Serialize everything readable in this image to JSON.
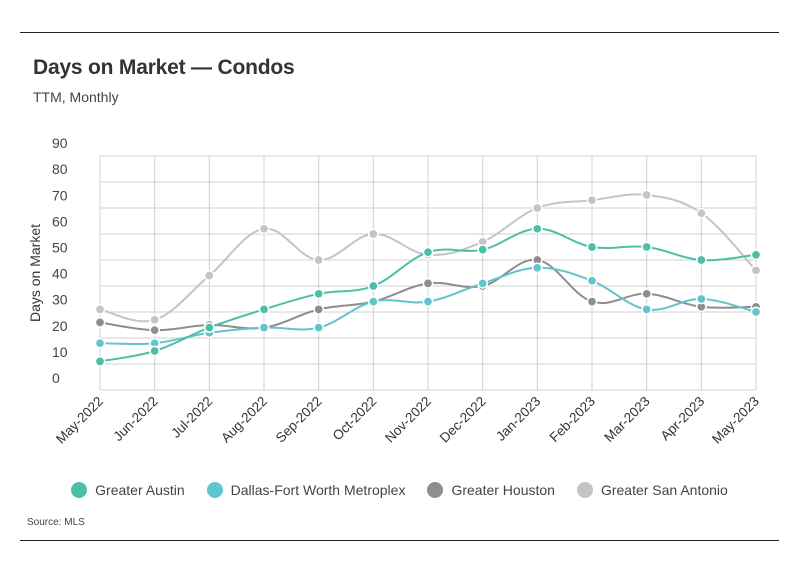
{
  "header": {
    "title": "Days on Market — Condos",
    "subtitle": "TTM, Monthly"
  },
  "footer": {
    "source": "Source:  MLS"
  },
  "chart_data": {
    "type": "line",
    "ylabel": "Days on Market",
    "xlabel": "",
    "ylim": [
      0,
      90
    ],
    "yticks": [
      0,
      10,
      20,
      30,
      40,
      50,
      60,
      70,
      80,
      90
    ],
    "grid": true,
    "legend": "bottom",
    "categories": [
      "May-2022",
      "Jun-2022",
      "Jul-2022",
      "Aug-2022",
      "Sep-2022",
      "Oct-2022",
      "Nov-2022",
      "Dec-2022",
      "Jan-2023",
      "Feb-2023",
      "Mar-2023",
      "Apr-2023",
      "May-2023"
    ],
    "series": [
      {
        "name": "Greater Austin",
        "color": "#4dbfa8",
        "values": [
          11,
          15,
          24,
          31,
          37,
          40,
          53,
          54,
          62,
          55,
          55,
          50,
          52
        ]
      },
      {
        "name": "Dallas-Fort Worth Metroplex",
        "color": "#62c4cc",
        "values": [
          18,
          18,
          22,
          24,
          24,
          34,
          34,
          41,
          47,
          42,
          31,
          35,
          30
        ]
      },
      {
        "name": "Greater Houston",
        "color": "#8e8e8e",
        "values": [
          26,
          23,
          25,
          24,
          31,
          34,
          41,
          40,
          50,
          34,
          37,
          32,
          32
        ]
      },
      {
        "name": "Greater San Antonio",
        "color": "#c4c4c4",
        "values": [
          31,
          27,
          44,
          62,
          50,
          60,
          52,
          57,
          70,
          73,
          75,
          68,
          46
        ]
      }
    ]
  }
}
